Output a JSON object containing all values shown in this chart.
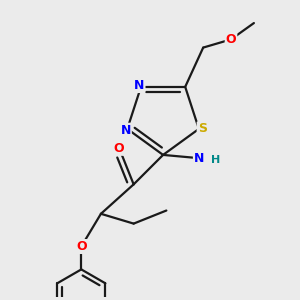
{
  "bg_color": "#ebebeb",
  "bond_color": "#1a1a1a",
  "bond_width": 1.6,
  "atom_colors": {
    "N": "#0000ff",
    "S": "#ccaa00",
    "O": "#ff0000",
    "H": "#008888",
    "C": "#1a1a1a"
  },
  "font_size_atom": 9
}
